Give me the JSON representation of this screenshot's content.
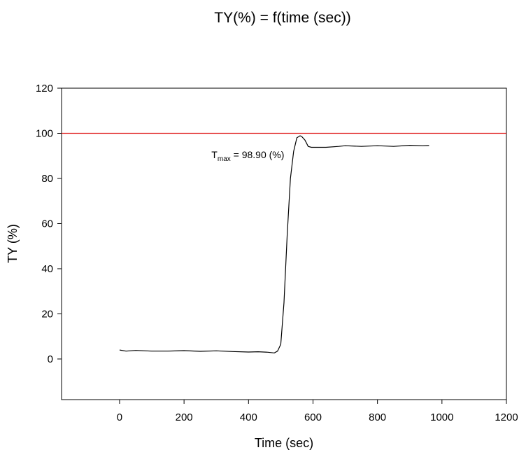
{
  "chart_data": {
    "type": "line",
    "title": "TY(%) = f(time (sec))",
    "xlabel": "Time (sec)",
    "ylabel": "TY (%)",
    "xlim": [
      -180,
      1200
    ],
    "ylim": [
      -18,
      120
    ],
    "xticks": [
      0,
      200,
      400,
      600,
      800,
      1000,
      1200
    ],
    "yticks": [
      0,
      20,
      40,
      60,
      80,
      100,
      120
    ],
    "xtick_labels": [
      "0",
      "200",
      "400",
      "600",
      "800",
      "1000",
      "1200"
    ],
    "ytick_labels": [
      "0",
      "20",
      "40",
      "60",
      "80",
      "100",
      "120"
    ],
    "grid": false,
    "reference_line": {
      "y": 100,
      "color": "#e02020"
    },
    "annotation": {
      "prefix": "T",
      "subscript": "max",
      "text": " = 98.90 (%)",
      "x": 285,
      "y": 89
    },
    "series": [
      {
        "color": "#000000",
        "x": [
          0,
          20,
          50,
          100,
          150,
          200,
          250,
          300,
          350,
          400,
          430,
          460,
          480,
          490,
          500,
          510,
          520,
          530,
          540,
          550,
          560,
          565,
          575,
          585,
          595,
          610,
          640,
          680,
          700,
          750,
          800,
          850,
          900,
          940,
          960
        ],
        "y": [
          4,
          3.5,
          3.8,
          3.5,
          3.5,
          3.7,
          3.4,
          3.6,
          3.3,
          3.1,
          3.2,
          3.0,
          2.7,
          3.5,
          6.5,
          25,
          55,
          80,
          92,
          98,
          98.9,
          98.6,
          97,
          94.2,
          93.8,
          93.8,
          93.8,
          94.2,
          94.5,
          94.2,
          94.5,
          94.2,
          94.7,
          94.5,
          94.6
        ]
      }
    ]
  }
}
